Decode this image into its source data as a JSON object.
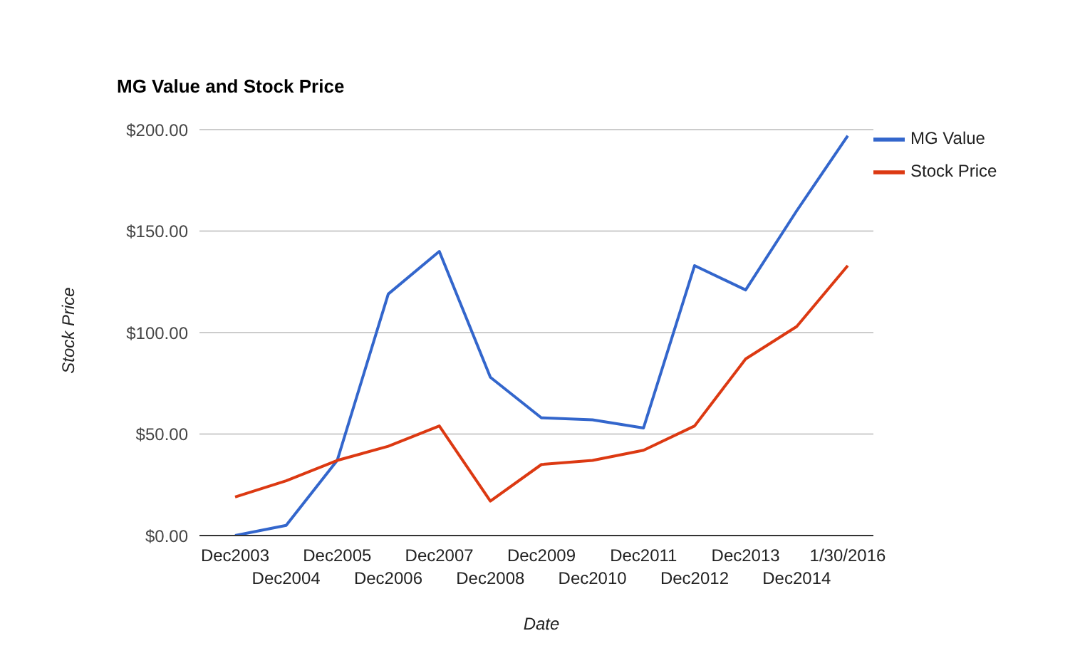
{
  "chart_data": {
    "type": "line",
    "title": "MG Value and Stock Price",
    "xlabel": "Date",
    "ylabel": "Stock Price",
    "categories": [
      "Dec2003",
      "Dec2004",
      "Dec2005",
      "Dec2006",
      "Dec2007",
      "Dec2008",
      "Dec2009",
      "Dec2010",
      "Dec2011",
      "Dec2012",
      "Dec2013",
      "Dec2014",
      "1/30/2016"
    ],
    "series": [
      {
        "name": "MG Value",
        "color": "#3366cc",
        "values": [
          0,
          5,
          37,
          119,
          140,
          78,
          58,
          57,
          53,
          133,
          121,
          160,
          197
        ]
      },
      {
        "name": "Stock Price",
        "color": "#dc3912",
        "values": [
          19,
          27,
          37,
          44,
          54,
          17,
          35,
          37,
          42,
          54,
          87,
          103,
          133
        ]
      }
    ],
    "ylim": [
      0,
      200
    ],
    "yticks": [
      {
        "value": 0,
        "label": "$0.00"
      },
      {
        "value": 50,
        "label": "$50.00"
      },
      {
        "value": 100,
        "label": "$100.00"
      },
      {
        "value": 150,
        "label": "$150.00"
      },
      {
        "value": 200,
        "label": "$200.00"
      }
    ],
    "grid": "y",
    "legend": "top right",
    "marker": "none",
    "line_style": "solid"
  }
}
